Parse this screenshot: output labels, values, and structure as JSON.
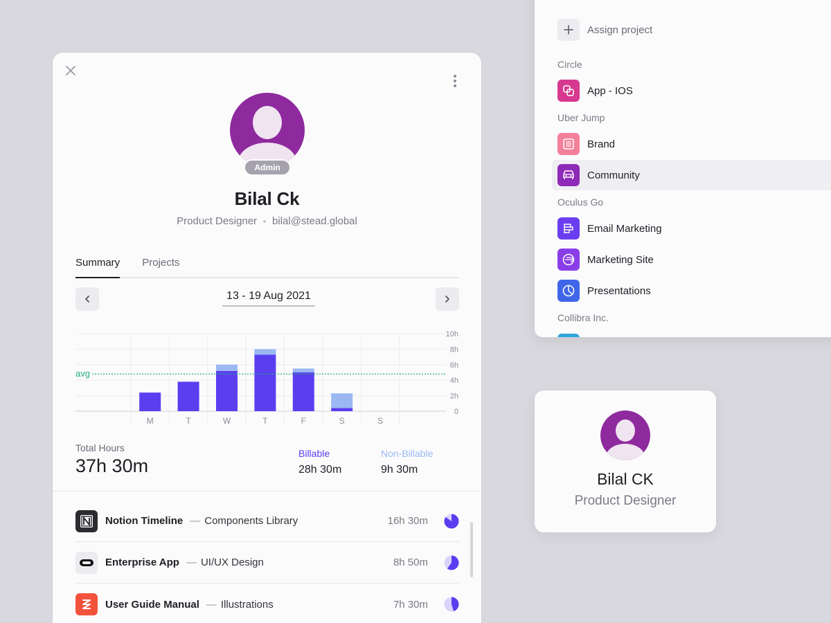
{
  "colors": {
    "billable": "#5a3ef0",
    "non_billable": "#9bb8f3",
    "avg_line": "#21b07a",
    "avatar_bg": "#8e2a9e"
  },
  "profile": {
    "badge": "Admin",
    "name": "Bilal Ck",
    "role": "Product Designer",
    "email": "bilal@stead.global"
  },
  "tabs": [
    {
      "label": "Summary",
      "active": true
    },
    {
      "label": "Projects",
      "active": false
    }
  ],
  "date_range": "13 - 19 Aug 2021",
  "chart_data": {
    "type": "bar",
    "stacked": true,
    "categories": [
      "M",
      "T",
      "W",
      "T",
      "F",
      "S",
      "S"
    ],
    "series": [
      {
        "name": "Billable",
        "values": [
          2.4,
          3.8,
          5.2,
          7.3,
          5.0,
          0.4,
          0
        ]
      },
      {
        "name": "Non-Billable",
        "values": [
          0,
          0,
          0.8,
          0.7,
          0.5,
          1.9,
          0
        ]
      }
    ],
    "yticks": [
      "0",
      "2h",
      "4h",
      "6h",
      "8h",
      "10h"
    ],
    "ylim": [
      0,
      10
    ],
    "avg": 4.8,
    "avg_label": "avg",
    "grid": true
  },
  "totals": {
    "total_label": "Total Hours",
    "total_value": "37h 30m",
    "billable_label": "Billable",
    "billable_value": "28h 30m",
    "non_billable_label": "Non-Billable",
    "non_billable_value": "9h 30m"
  },
  "projects": [
    {
      "name": "Notion Timeline",
      "task": "Components Library",
      "hours": "16h 30m",
      "icon": "notion-icon",
      "share": 0.85
    },
    {
      "name": "Enterprise App",
      "task": "UI/UX Design",
      "hours": "8h 50m",
      "icon": "oculus-icon",
      "share": 0.6
    },
    {
      "name": "User Guide Manual",
      "task": "Illustrations",
      "hours": "7h 30m",
      "icon": "stack-icon",
      "share": 0.45
    }
  ],
  "project_separator": "—",
  "assign": {
    "button_label": "Assign project",
    "groups": [
      {
        "label": "Circle",
        "items": [
          {
            "label": "App - IOS",
            "icon": "link-icon",
            "color": "#d6398f",
            "selected": false
          }
        ]
      },
      {
        "label": "Uber Jump",
        "items": [
          {
            "label": "Brand",
            "icon": "list-icon",
            "color": "#f4809a",
            "selected": false
          }
        ]
      },
      {
        "label": "Oculus Go",
        "items": [
          {
            "label": "Community",
            "icon": "car-icon",
            "color": "#8e2ab8",
            "selected": true
          },
          {
            "label": "Email Marketing",
            "icon": "chart-bars-icon",
            "color": "#6a3ef0",
            "selected": false
          },
          {
            "label": "Marketing Site",
            "icon": "globe-icon",
            "color": "#8a3ee8",
            "selected": false
          },
          {
            "label": "Presentations",
            "icon": "pie-chart-icon",
            "color": "#3f66e8",
            "selected": false
          }
        ]
      },
      {
        "label": "Collibra Inc.",
        "items": []
      }
    ]
  },
  "mini_profile": {
    "name": "Bilal CK",
    "role": "Product Designer"
  }
}
